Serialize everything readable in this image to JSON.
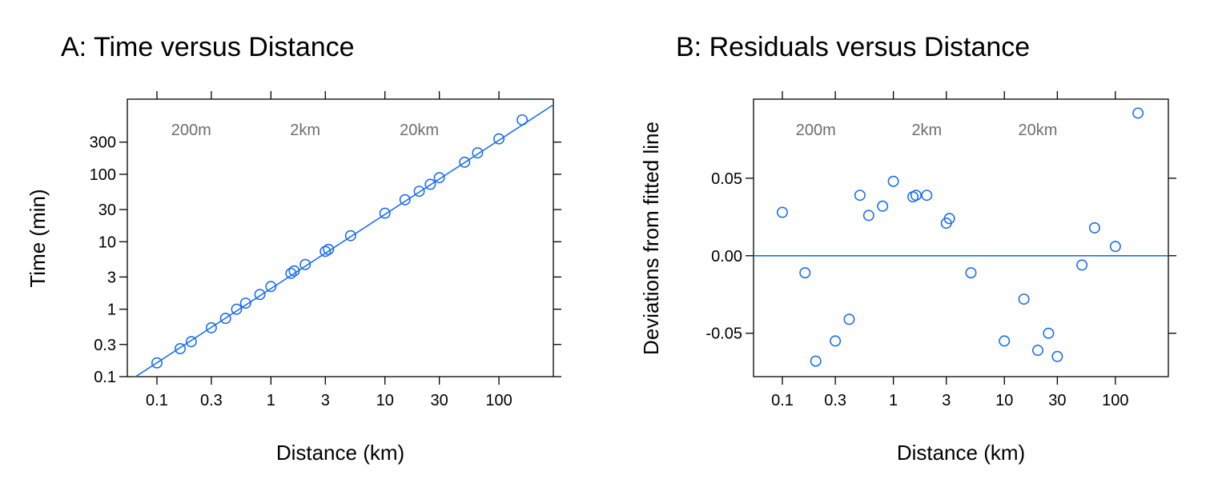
{
  "colors": {
    "accent": "#1a6ff0"
  },
  "chart_data": [
    {
      "type": "scatter",
      "title": "A: Time versus Distance",
      "xlabel": "Distance (km)",
      "ylabel": "Time (min)",
      "x_scale": "log",
      "y_scale": "log",
      "xlim": [
        0.055,
        300
      ],
      "ylim": [
        0.1,
        1300
      ],
      "x_ticks": [
        0.1,
        0.3,
        1,
        3,
        10,
        30,
        100
      ],
      "x_tick_labels": [
        "0.1",
        "0.3",
        "1",
        "3",
        "10",
        "30",
        "100"
      ],
      "y_ticks": [
        0.1,
        0.3,
        1,
        3,
        10,
        30,
        100,
        300
      ],
      "y_tick_labels": [
        "0.1",
        "0.3",
        "1",
        "3",
        "10",
        "30",
        "100",
        "300"
      ],
      "top_axis": {
        "ticks": [
          0.2,
          2,
          20
        ],
        "labels": [
          "200m",
          "2km",
          "20km"
        ]
      },
      "fitted_line": {
        "type": "power",
        "coef": 2.02,
        "exponent": 1.1
      },
      "points": [
        {
          "x": 0.1,
          "y": 0.16
        },
        {
          "x": 0.16,
          "y": 0.26
        },
        {
          "x": 0.2,
          "y": 0.33
        },
        {
          "x": 0.3,
          "y": 0.53
        },
        {
          "x": 0.4,
          "y": 0.73
        },
        {
          "x": 0.5,
          "y": 1.0
        },
        {
          "x": 0.6,
          "y": 1.23
        },
        {
          "x": 0.8,
          "y": 1.65
        },
        {
          "x": 1.0,
          "y": 2.17
        },
        {
          "x": 1.5,
          "y": 3.4
        },
        {
          "x": 1.6,
          "y": 3.7
        },
        {
          "x": 2.0,
          "y": 4.6
        },
        {
          "x": 3.0,
          "y": 7.2
        },
        {
          "x": 3.2,
          "y": 7.7
        },
        {
          "x": 5.0,
          "y": 12.3
        },
        {
          "x": 10,
          "y": 26.5
        },
        {
          "x": 15,
          "y": 42
        },
        {
          "x": 20,
          "y": 56
        },
        {
          "x": 25,
          "y": 71
        },
        {
          "x": 30,
          "y": 89
        },
        {
          "x": 50,
          "y": 151
        },
        {
          "x": 65,
          "y": 208
        },
        {
          "x": 100,
          "y": 335
        },
        {
          "x": 160,
          "y": 640
        }
      ]
    },
    {
      "type": "scatter",
      "title": "B: Residuals versus Distance",
      "xlabel": "Distance (km)",
      "ylabel": "Deviations from fitted line",
      "x_scale": "log",
      "y_scale": "linear",
      "xlim": [
        0.055,
        300
      ],
      "ylim": [
        -0.078,
        0.101
      ],
      "x_ticks": [
        0.1,
        0.3,
        1,
        3,
        10,
        30,
        100
      ],
      "x_tick_labels": [
        "0.1",
        "0.3",
        "1",
        "3",
        "10",
        "30",
        "100"
      ],
      "y_ticks": [
        -0.05,
        0.0,
        0.05
      ],
      "y_tick_labels": [
        "-0.05",
        "0.00",
        "0.05"
      ],
      "top_axis": {
        "ticks": [
          0.2,
          2,
          20
        ],
        "labels": [
          "200m",
          "2km",
          "20km"
        ]
      },
      "reference_line": 0.0,
      "points": [
        {
          "x": 0.1,
          "y": 0.028
        },
        {
          "x": 0.16,
          "y": -0.011
        },
        {
          "x": 0.2,
          "y": -0.068
        },
        {
          "x": 0.3,
          "y": -0.055
        },
        {
          "x": 0.4,
          "y": -0.041
        },
        {
          "x": 0.5,
          "y": 0.039
        },
        {
          "x": 0.6,
          "y": 0.026
        },
        {
          "x": 0.8,
          "y": 0.032
        },
        {
          "x": 1.0,
          "y": 0.048
        },
        {
          "x": 1.5,
          "y": 0.038
        },
        {
          "x": 1.6,
          "y": 0.039
        },
        {
          "x": 2.0,
          "y": 0.039
        },
        {
          "x": 3.0,
          "y": 0.021
        },
        {
          "x": 3.2,
          "y": 0.024
        },
        {
          "x": 5.0,
          "y": -0.011
        },
        {
          "x": 10,
          "y": -0.055
        },
        {
          "x": 15,
          "y": -0.028
        },
        {
          "x": 20,
          "y": -0.061
        },
        {
          "x": 25,
          "y": -0.05
        },
        {
          "x": 30,
          "y": -0.065
        },
        {
          "x": 50,
          "y": -0.006
        },
        {
          "x": 65,
          "y": 0.018
        },
        {
          "x": 100,
          "y": 0.006
        },
        {
          "x": 160,
          "y": 0.092
        }
      ]
    }
  ]
}
